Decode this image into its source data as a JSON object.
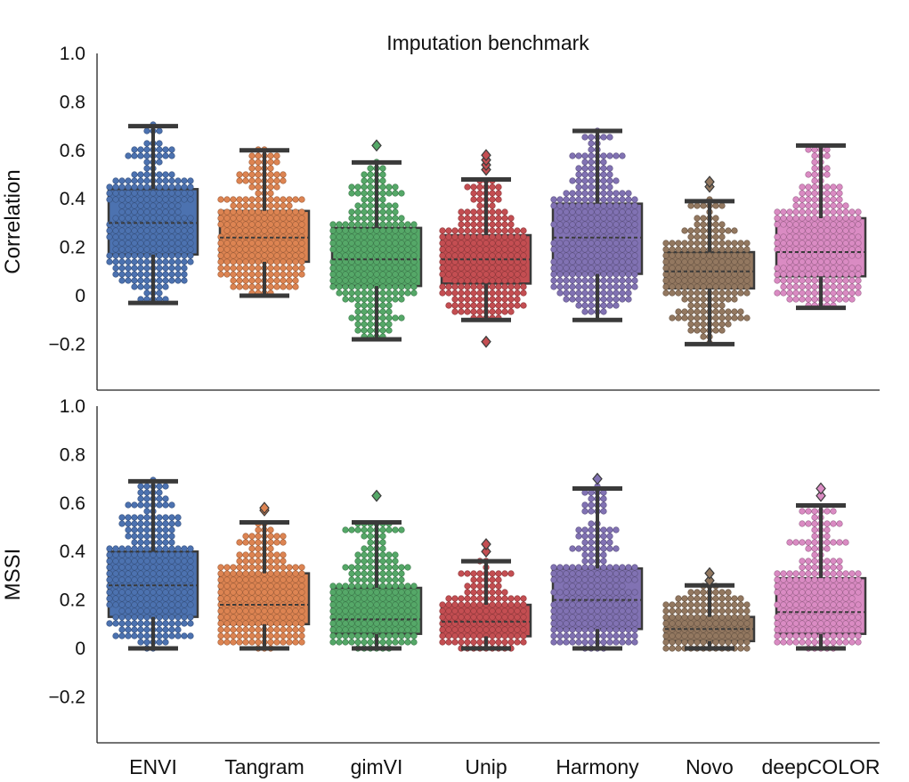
{
  "chart_data": {
    "type": "box-swarm",
    "title": "Imputation benchmark",
    "categories": [
      "ENVI",
      "Tangram",
      "gimVI",
      "Unip",
      "Harmony",
      "Novo",
      "deepCOLOR"
    ],
    "colors": [
      "#4c72b0",
      "#dd8452",
      "#55a868",
      "#c44e52",
      "#8172b3",
      "#937860",
      "#da8bc3"
    ],
    "yticks": [
      1.0,
      0.8,
      0.6,
      0.4,
      0.2,
      0,
      -0.2
    ],
    "ytick_labels": [
      "1.0",
      "0.8",
      "0.6",
      "0.4",
      "0.2",
      "0",
      "−0.2"
    ],
    "panels": [
      {
        "ylabel": "Correlation",
        "ylim": [
          -0.38,
          1.0
        ],
        "boxes": [
          {
            "whisker_low": -0.03,
            "q1": 0.17,
            "median": 0.3,
            "q3": 0.44,
            "whisker_high": 0.7,
            "outliers": []
          },
          {
            "whisker_low": 0.0,
            "q1": 0.14,
            "median": 0.24,
            "q3": 0.35,
            "whisker_high": 0.6,
            "outliers": []
          },
          {
            "whisker_low": -0.18,
            "q1": 0.04,
            "median": 0.15,
            "q3": 0.28,
            "whisker_high": 0.55,
            "outliers": [
              0.62
            ]
          },
          {
            "whisker_low": -0.1,
            "q1": 0.05,
            "median": 0.15,
            "q3": 0.25,
            "whisker_high": 0.48,
            "outliers": [
              0.52,
              0.54,
              0.56,
              0.58,
              -0.19
            ]
          },
          {
            "whisker_low": -0.1,
            "q1": 0.09,
            "median": 0.24,
            "q3": 0.38,
            "whisker_high": 0.68,
            "outliers": []
          },
          {
            "whisker_low": -0.2,
            "q1": 0.03,
            "median": 0.1,
            "q3": 0.18,
            "whisker_high": 0.39,
            "outliers": [
              0.45,
              0.47
            ]
          },
          {
            "whisker_low": -0.05,
            "q1": 0.08,
            "median": 0.18,
            "q3": 0.32,
            "whisker_high": 0.62,
            "outliers": []
          }
        ]
      },
      {
        "ylabel": "MSSI",
        "ylim": [
          -0.38,
          1.0
        ],
        "boxes": [
          {
            "whisker_low": 0.0,
            "q1": 0.13,
            "median": 0.26,
            "q3": 0.4,
            "whisker_high": 0.69,
            "outliers": []
          },
          {
            "whisker_low": 0.0,
            "q1": 0.1,
            "median": 0.18,
            "q3": 0.31,
            "whisker_high": 0.52,
            "outliers": [
              0.57,
              0.58
            ]
          },
          {
            "whisker_low": 0.0,
            "q1": 0.06,
            "median": 0.12,
            "q3": 0.25,
            "whisker_high": 0.52,
            "outliers": [
              0.63
            ]
          },
          {
            "whisker_low": 0.0,
            "q1": 0.05,
            "median": 0.11,
            "q3": 0.18,
            "whisker_high": 0.36,
            "outliers": [
              0.4,
              0.43
            ]
          },
          {
            "whisker_low": 0.0,
            "q1": 0.08,
            "median": 0.2,
            "q3": 0.33,
            "whisker_high": 0.66,
            "outliers": [
              0.7
            ]
          },
          {
            "whisker_low": 0.0,
            "q1": 0.03,
            "median": 0.08,
            "q3": 0.13,
            "whisker_high": 0.26,
            "outliers": [
              0.28,
              0.31
            ]
          },
          {
            "whisker_low": 0.0,
            "q1": 0.06,
            "median": 0.15,
            "q3": 0.29,
            "whisker_high": 0.59,
            "outliers": [
              0.63,
              0.66
            ]
          }
        ]
      }
    ]
  }
}
